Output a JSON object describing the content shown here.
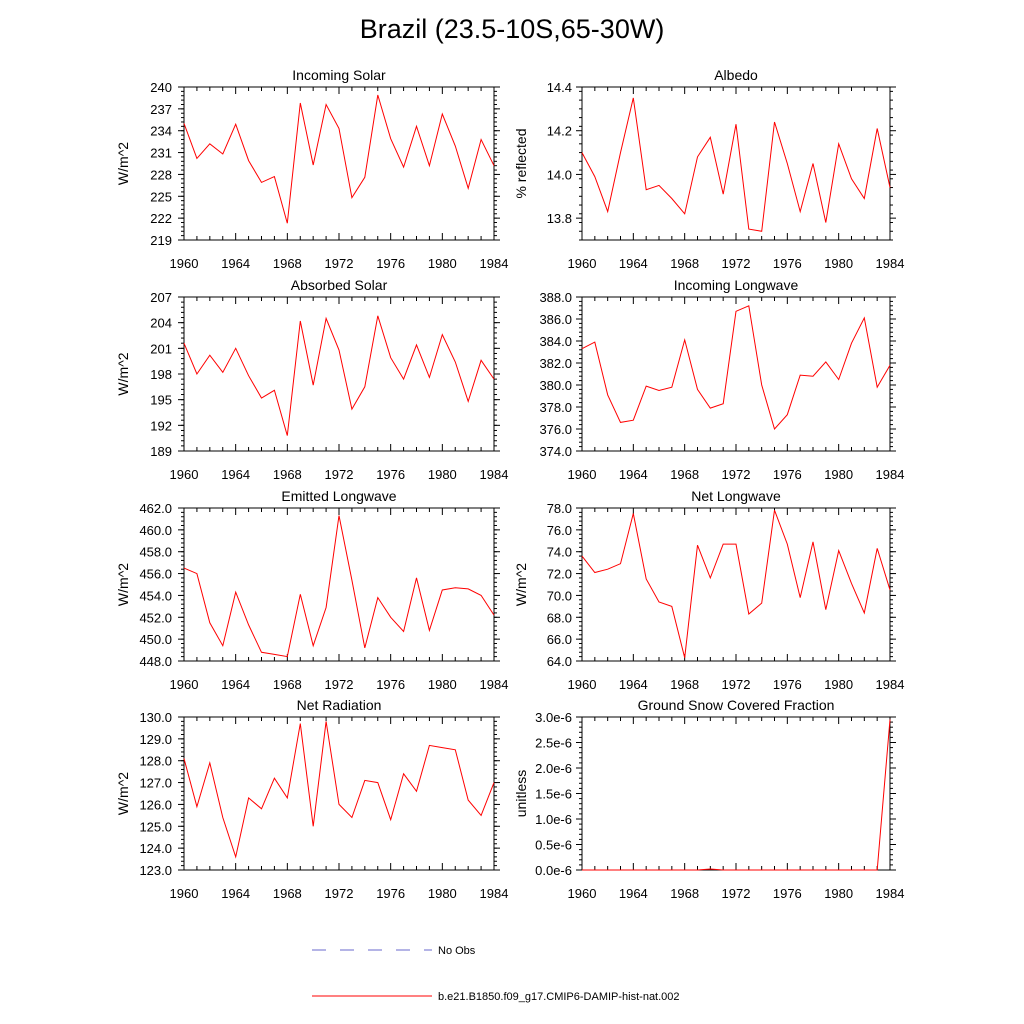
{
  "figure": {
    "title": "Brazil (23.5-10S,65-30W)",
    "series_color": "#ff0000",
    "obs_color": "#6a6acd",
    "legend": {
      "obs_label": "No Obs",
      "model_label": "b.e21.B1850.f09_g17.CMIP6-DAMIP-hist-nat.002"
    }
  },
  "chart_data": [
    {
      "type": "line",
      "title": "Incoming Solar",
      "ylabel": "W/m^2",
      "xlim": [
        1960,
        1984
      ],
      "ylim": [
        219,
        240
      ],
      "xticks": [
        "1960",
        "1964",
        "1968",
        "1972",
        "1976",
        "1980",
        "1984"
      ],
      "yticks": [
        "219",
        "222",
        "225",
        "228",
        "231",
        "234",
        "237",
        "240"
      ],
      "x": [
        1960,
        1961,
        1962,
        1963,
        1964,
        1965,
        1966,
        1967,
        1968,
        1969,
        1970,
        1971,
        1972,
        1973,
        1974,
        1975,
        1976,
        1977,
        1978,
        1979,
        1980,
        1981,
        1982,
        1983,
        1984
      ],
      "series": [
        {
          "values": [
            235.0,
            230.2,
            232.2,
            230.8,
            234.9,
            229.9,
            226.9,
            227.7,
            221.3,
            237.8,
            229.3,
            237.6,
            234.3,
            224.8,
            227.6,
            238.9,
            232.9,
            229.0,
            234.6,
            229.2,
            236.3,
            231.9,
            226.1,
            232.8,
            229.2
          ]
        }
      ]
    },
    {
      "type": "line",
      "title": "Albedo",
      "ylabel": "% reflected",
      "xlim": [
        1960,
        1984
      ],
      "ylim": [
        13.7,
        14.4
      ],
      "xticks": [
        "1960",
        "1964",
        "1968",
        "1972",
        "1976",
        "1980",
        "1984"
      ],
      "yticks": [
        "13.8",
        "14.0",
        "14.2",
        "14.4"
      ],
      "x": [
        1960,
        1961,
        1962,
        1963,
        1964,
        1965,
        1966,
        1967,
        1968,
        1969,
        1970,
        1971,
        1972,
        1973,
        1974,
        1975,
        1976,
        1977,
        1978,
        1979,
        1980,
        1981,
        1982,
        1983,
        1984
      ],
      "series": [
        {
          "values": [
            14.1,
            13.99,
            13.83,
            14.1,
            14.35,
            13.93,
            13.95,
            13.89,
            13.82,
            14.08,
            14.17,
            13.91,
            14.23,
            13.75,
            13.74,
            14.24,
            14.05,
            13.83,
            14.05,
            13.78,
            14.14,
            13.98,
            13.89,
            14.21,
            13.94
          ]
        }
      ]
    },
    {
      "type": "line",
      "title": "Absorbed Solar",
      "ylabel": "W/m^2",
      "xlim": [
        1960,
        1984
      ],
      "ylim": [
        189,
        207
      ],
      "xticks": [
        "1960",
        "1964",
        "1968",
        "1972",
        "1976",
        "1980",
        "1984"
      ],
      "yticks": [
        "189",
        "192",
        "195",
        "198",
        "201",
        "204",
        "207"
      ],
      "x": [
        1960,
        1961,
        1962,
        1963,
        1964,
        1965,
        1966,
        1967,
        1968,
        1969,
        1970,
        1971,
        1972,
        1973,
        1974,
        1975,
        1976,
        1977,
        1978,
        1979,
        1980,
        1981,
        1982,
        1983,
        1984
      ],
      "series": [
        {
          "values": [
            201.6,
            198.0,
            200.2,
            198.2,
            201.0,
            197.8,
            195.2,
            196.1,
            190.8,
            204.2,
            196.7,
            204.5,
            200.8,
            193.9,
            196.5,
            204.8,
            199.9,
            197.4,
            201.4,
            197.6,
            202.6,
            199.4,
            194.8,
            199.6,
            197.4
          ]
        }
      ]
    },
    {
      "type": "line",
      "title": "Incoming Longwave",
      "ylabel": "",
      "xlim": [
        1960,
        1984
      ],
      "ylim": [
        374.0,
        388.0
      ],
      "xticks": [
        "1960",
        "1964",
        "1968",
        "1972",
        "1976",
        "1980",
        "1984"
      ],
      "yticks": [
        "374.0",
        "376.0",
        "378.0",
        "380.0",
        "382.0",
        "384.0",
        "386.0",
        "388.0"
      ],
      "x": [
        1960,
        1961,
        1962,
        1963,
        1964,
        1965,
        1966,
        1967,
        1968,
        1969,
        1970,
        1971,
        1972,
        1973,
        1974,
        1975,
        1976,
        1977,
        1978,
        1979,
        1980,
        1981,
        1982,
        1983,
        1984
      ],
      "series": [
        {
          "values": [
            383.3,
            383.9,
            379.1,
            376.6,
            376.8,
            379.9,
            379.5,
            379.8,
            384.1,
            379.6,
            377.9,
            378.3,
            386.7,
            387.2,
            380.0,
            376.0,
            377.3,
            380.9,
            380.8,
            382.1,
            380.5,
            383.8,
            386.1,
            379.8,
            381.8
          ]
        }
      ]
    },
    {
      "type": "line",
      "title": "Emitted Longwave",
      "ylabel": "W/m^2",
      "xlim": [
        1960,
        1984
      ],
      "ylim": [
        448.0,
        462.0
      ],
      "xticks": [
        "1960",
        "1964",
        "1968",
        "1972",
        "1976",
        "1980",
        "1984"
      ],
      "yticks": [
        "448.0",
        "450.0",
        "452.0",
        "454.0",
        "456.0",
        "458.0",
        "460.0",
        "462.0"
      ],
      "x": [
        1960,
        1961,
        1962,
        1963,
        1964,
        1965,
        1966,
        1967,
        1968,
        1969,
        1970,
        1971,
        1972,
        1973,
        1974,
        1975,
        1976,
        1977,
        1978,
        1979,
        1980,
        1981,
        1982,
        1983,
        1984
      ],
      "series": [
        {
          "values": [
            456.5,
            456.0,
            451.5,
            449.4,
            454.3,
            451.3,
            448.8,
            448.6,
            448.4,
            454.1,
            449.4,
            452.9,
            461.3,
            455.4,
            449.2,
            453.8,
            452.0,
            450.7,
            455.6,
            450.8,
            454.5,
            454.7,
            454.6,
            454.0,
            452.2
          ]
        }
      ]
    },
    {
      "type": "line",
      "title": "Net Longwave",
      "ylabel": "W/m^2",
      "xlim": [
        1960,
        1984
      ],
      "ylim": [
        64.0,
        78.0
      ],
      "xticks": [
        "1960",
        "1964",
        "1968",
        "1972",
        "1976",
        "1980",
        "1984"
      ],
      "yticks": [
        "64.0",
        "66.0",
        "68.0",
        "70.0",
        "72.0",
        "74.0",
        "76.0",
        "78.0"
      ],
      "x": [
        1960,
        1961,
        1962,
        1963,
        1964,
        1965,
        1966,
        1967,
        1968,
        1969,
        1970,
        1971,
        1972,
        1973,
        1974,
        1975,
        1976,
        1977,
        1978,
        1979,
        1980,
        1981,
        1982,
        1983,
        1984
      ],
      "series": [
        {
          "values": [
            73.6,
            72.1,
            72.4,
            72.9,
            77.5,
            71.5,
            69.4,
            69.0,
            64.3,
            74.6,
            71.6,
            74.7,
            74.7,
            68.3,
            69.3,
            77.8,
            74.7,
            69.8,
            74.9,
            68.7,
            74.1,
            71.1,
            68.4,
            74.3,
            70.5
          ]
        }
      ]
    },
    {
      "type": "line",
      "title": "Net Radiation",
      "ylabel": "W/m^2",
      "xlim": [
        1960,
        1984
      ],
      "ylim": [
        123.0,
        130.0
      ],
      "xticks": [
        "1960",
        "1964",
        "1968",
        "1972",
        "1976",
        "1980",
        "1984"
      ],
      "yticks": [
        "123.0",
        "124.0",
        "125.0",
        "126.0",
        "127.0",
        "128.0",
        "129.0",
        "130.0"
      ],
      "x": [
        1960,
        1961,
        1962,
        1963,
        1964,
        1965,
        1966,
        1967,
        1968,
        1969,
        1970,
        1971,
        1972,
        1973,
        1974,
        1975,
        1976,
        1977,
        1978,
        1979,
        1980,
        1981,
        1982,
        1983,
        1984
      ],
      "series": [
        {
          "values": [
            128.1,
            125.9,
            127.9,
            125.4,
            123.6,
            126.3,
            125.8,
            127.2,
            126.3,
            129.7,
            125.0,
            129.8,
            126.0,
            125.4,
            127.1,
            127.0,
            125.3,
            127.4,
            126.6,
            128.7,
            128.6,
            128.5,
            126.2,
            125.5,
            127.0
          ]
        }
      ]
    },
    {
      "type": "line",
      "title": "Ground Snow Covered Fraction",
      "ylabel": "unitless",
      "xlim": [
        1960,
        1984
      ],
      "ylim": [
        0.0,
        3e-06
      ],
      "xticks": [
        "1960",
        "1964",
        "1968",
        "1972",
        "1976",
        "1980",
        "1984"
      ],
      "yticks": [
        "0.0e-6",
        "0.5e-6",
        "1.0e-6",
        "1.5e-6",
        "2.0e-6",
        "2.5e-6",
        "3.0e-6"
      ],
      "x": [
        1960,
        1961,
        1962,
        1963,
        1964,
        1965,
        1966,
        1967,
        1968,
        1969,
        1970,
        1971,
        1972,
        1973,
        1974,
        1975,
        1976,
        1977,
        1978,
        1979,
        1980,
        1981,
        1982,
        1983,
        1984
      ],
      "series": [
        {
          "values": [
            0,
            0,
            0,
            0,
            0,
            0,
            0,
            0,
            0,
            0,
            2e-08,
            0,
            0,
            0,
            0,
            0,
            0,
            0,
            0,
            0,
            0,
            0,
            0,
            0,
            2.95e-06
          ]
        }
      ]
    }
  ]
}
